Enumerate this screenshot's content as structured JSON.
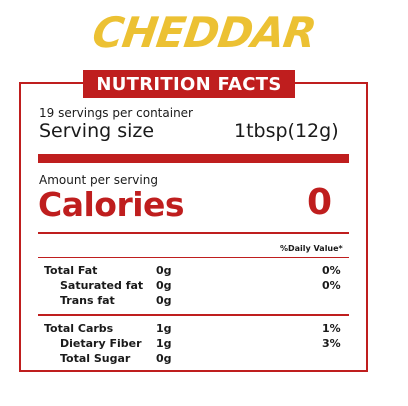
{
  "brand": "CHEDDAR",
  "header": "NUTRITION FACTS",
  "servings_per_container": "19 servings per container",
  "serving_size": {
    "label": "Serving size",
    "value": "1tbsp(12g)"
  },
  "amount_per_serving": "Amount per serving",
  "calories": {
    "label": "Calories",
    "value": "0"
  },
  "daily_value_header": "%Daily Value*",
  "nutrients": [
    {
      "name": "Total Fat",
      "amount": "0g",
      "dv": "0%"
    },
    {
      "name": "Saturated fat",
      "amount": "0g",
      "dv": "0%"
    },
    {
      "name": "Trans fat",
      "amount": "0g",
      "dv": ""
    },
    {
      "name": "Total Carbs",
      "amount": "1g",
      "dv": "1%"
    },
    {
      "name": "Dietary Fiber",
      "amount": "1g",
      "dv": "3%"
    },
    {
      "name": "Total Sugar",
      "amount": "0g",
      "dv": ""
    }
  ],
  "colors": {
    "accent_red": "#bf1e1e",
    "brand_gold": "#ecc133"
  }
}
